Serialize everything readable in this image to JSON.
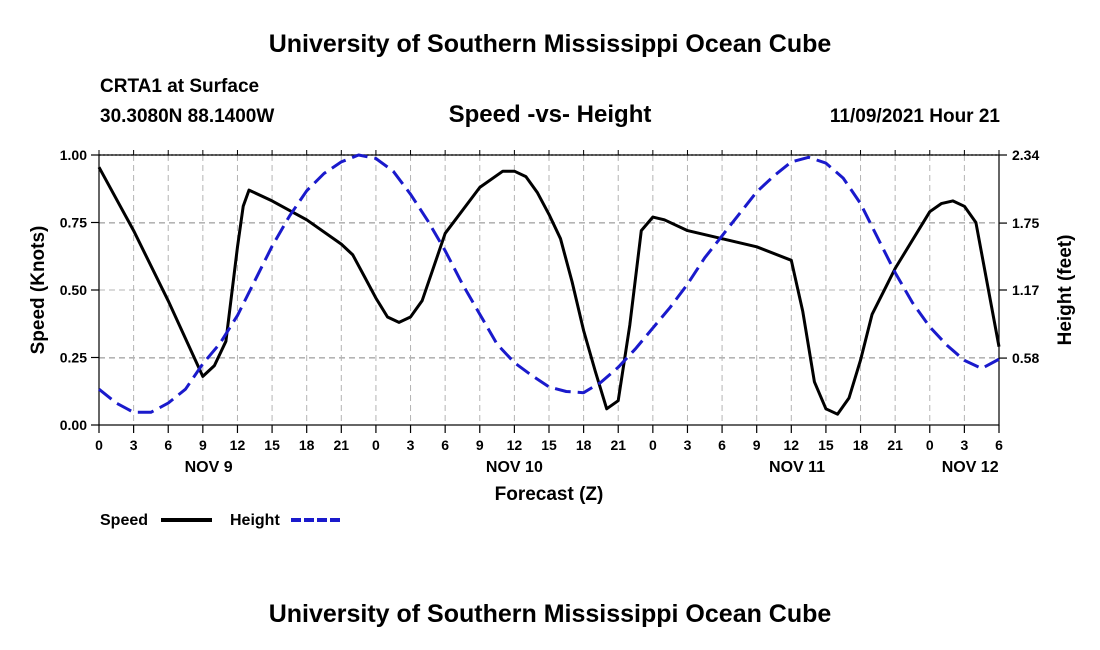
{
  "header": {
    "title": "University of Southern Mississippi Ocean Cube",
    "station": "CRTA1 at Surface",
    "location": "30.3080N  88.1400W",
    "datetime": "11/09/2021 Hour 21"
  },
  "footer": {
    "title": "University of Southern Mississippi Ocean Cube"
  },
  "chart_data": {
    "type": "line",
    "title": "Speed -vs- Height",
    "xlabel": "Forecast (Z)",
    "ylabel_left": "Speed (Knots)",
    "ylabel_right": "Height (feet)",
    "xlim": [
      0,
      78
    ],
    "ylim_left": [
      0,
      1.0
    ],
    "ylim_right": [
      0,
      2.34
    ],
    "grid": true,
    "x_tick_values": [
      0,
      3,
      6,
      9,
      12,
      15,
      18,
      21,
      24,
      27,
      30,
      33,
      36,
      39,
      42,
      45,
      48,
      51,
      54,
      57,
      60,
      63,
      66,
      69,
      72,
      75,
      78
    ],
    "x_tick_labels": [
      "0",
      "3",
      "6",
      "9",
      "12",
      "15",
      "18",
      "21",
      "0",
      "3",
      "6",
      "9",
      "12",
      "15",
      "18",
      "21",
      "0",
      "3",
      "6",
      "9",
      "12",
      "15",
      "18",
      "21",
      "0",
      "3",
      "6"
    ],
    "day_labels": [
      {
        "label": "NOV 9",
        "x": 9.5
      },
      {
        "label": "NOV 10",
        "x": 36
      },
      {
        "label": "NOV 11",
        "x": 60.5
      },
      {
        "label": "NOV 12",
        "x": 75.5
      }
    ],
    "left_ticks": [
      {
        "value": 0.0,
        "label": "0.00"
      },
      {
        "value": 0.25,
        "label": "0.25"
      },
      {
        "value": 0.5,
        "label": "0.50"
      },
      {
        "value": 0.75,
        "label": "0.75"
      },
      {
        "value": 1.0,
        "label": "1.00"
      }
    ],
    "right_ticks": [
      {
        "value": 0.58,
        "label": "0.58"
      },
      {
        "value": 1.17,
        "label": "1.17"
      },
      {
        "value": 1.75,
        "label": "1.75"
      },
      {
        "value": 2.34,
        "label": "2.34"
      }
    ],
    "series": [
      {
        "name": "Speed",
        "axis": "left",
        "color": "#000000",
        "style": "solid",
        "x": [
          0,
          3,
          6,
          9,
          10,
          11,
          12,
          12.5,
          13,
          15,
          18,
          21,
          22,
          23,
          24,
          25,
          26,
          27,
          28,
          30,
          33,
          35,
          36,
          37,
          38,
          39,
          40,
          41,
          42,
          43,
          44,
          45,
          46,
          47,
          48,
          49,
          51,
          54,
          57,
          60,
          61,
          62,
          63,
          64,
          65,
          66,
          67,
          69,
          72,
          73,
          74,
          75,
          76,
          78
        ],
        "y": [
          0.955,
          0.72,
          0.46,
          0.18,
          0.22,
          0.31,
          0.66,
          0.81,
          0.87,
          0.83,
          0.76,
          0.67,
          0.63,
          0.55,
          0.47,
          0.4,
          0.38,
          0.4,
          0.46,
          0.71,
          0.88,
          0.94,
          0.94,
          0.92,
          0.86,
          0.78,
          0.69,
          0.53,
          0.35,
          0.2,
          0.06,
          0.09,
          0.37,
          0.72,
          0.77,
          0.76,
          0.72,
          0.69,
          0.66,
          0.61,
          0.42,
          0.16,
          0.06,
          0.04,
          0.1,
          0.24,
          0.41,
          0.58,
          0.79,
          0.82,
          0.83,
          0.81,
          0.75,
          0.29
        ]
      },
      {
        "name": "Height",
        "axis": "right",
        "color": "#1a1acc",
        "style": "dashed",
        "x": [
          0,
          1.5,
          3,
          4.5,
          6,
          7.5,
          9,
          10.5,
          12,
          13.5,
          15,
          16.5,
          18,
          19.5,
          21,
          22.5,
          24,
          25.5,
          27,
          28.5,
          30,
          31.5,
          33,
          34.5,
          36,
          37.5,
          39,
          40.5,
          42,
          43.5,
          45,
          46.5,
          48,
          49.5,
          51,
          52.5,
          54,
          55.5,
          57,
          58.5,
          60,
          61.5,
          63,
          64.5,
          66,
          67.5,
          69,
          70.5,
          72,
          73.5,
          75,
          76.5,
          78
        ],
        "y": [
          0.31,
          0.19,
          0.11,
          0.11,
          0.19,
          0.31,
          0.53,
          0.71,
          0.95,
          1.25,
          1.55,
          1.81,
          2.03,
          2.18,
          2.28,
          2.34,
          2.31,
          2.2,
          2.0,
          1.77,
          1.51,
          1.22,
          0.96,
          0.7,
          0.54,
          0.43,
          0.33,
          0.29,
          0.28,
          0.37,
          0.5,
          0.66,
          0.84,
          1.02,
          1.22,
          1.45,
          1.64,
          1.83,
          2.02,
          2.16,
          2.28,
          2.32,
          2.27,
          2.14,
          1.92,
          1.62,
          1.32,
          1.06,
          0.85,
          0.69,
          0.56,
          0.49,
          0.57
        ]
      }
    ],
    "legend": [
      {
        "label": "Speed",
        "color": "#000000",
        "style": "solid"
      },
      {
        "label": "Height",
        "color": "#1a1acc",
        "style": "dashed"
      }
    ]
  }
}
